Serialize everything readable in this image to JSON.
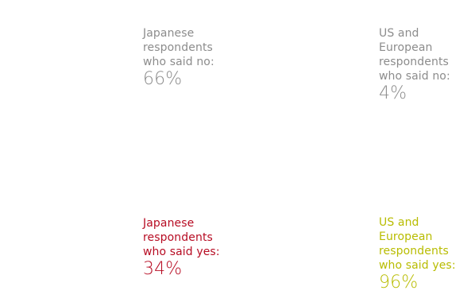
{
  "colors": {
    "no": "#8c8c8c",
    "japan_yes": "#b70c23",
    "us_eu_yes": "#b8bc00",
    "background": "#ffffff"
  },
  "icons": {
    "figure": "person-silhouette-icon"
  },
  "labels": {
    "japan_no": {
      "lines": [
        "Japanese",
        "respondents",
        "who said no:"
      ],
      "value": "66%"
    },
    "japan_yes": {
      "lines": [
        "Japanese",
        "respondents",
        "who said yes:"
      ],
      "value": "34%"
    },
    "us_eu_no": {
      "lines": [
        "US and",
        "European",
        "respondents",
        "who said no:"
      ],
      "value": "4%"
    },
    "us_eu_yes": {
      "lines": [
        "US and",
        "European",
        "respondents",
        "who said yes:"
      ],
      "value": "96%"
    }
  },
  "chart_data": {
    "type": "bar",
    "categories": [
      "Japanese respondents",
      "US and European respondents"
    ],
    "series": [
      {
        "name": "who said no",
        "values": [
          66,
          4
        ]
      },
      {
        "name": "who said yes",
        "values": [
          34,
          96
        ]
      }
    ],
    "ylim": [
      0,
      100
    ],
    "grid": false,
    "legend": "none"
  }
}
